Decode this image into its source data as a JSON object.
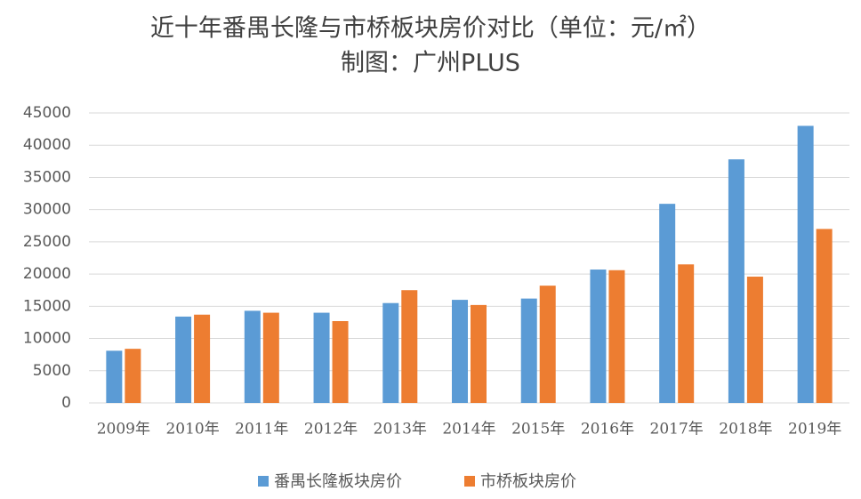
{
  "chart_data": {
    "type": "bar",
    "title": "近十年番禺长隆与市桥板块房价对比（单位：元/㎡）",
    "subtitle": "制图：广州PLUS",
    "categories": [
      "2009年",
      "2010年",
      "2011年",
      "2012年",
      "2013年",
      "2014年",
      "2015年",
      "2016年",
      "2017年",
      "2018年",
      "2019年"
    ],
    "series": [
      {
        "name": "番禺长隆板块房价",
        "color": "#5b9bd5",
        "values": [
          8100,
          13400,
          14300,
          14000,
          15500,
          16000,
          16200,
          20700,
          30900,
          37800,
          43000
        ]
      },
      {
        "name": "市桥板块房价",
        "color": "#ed7d31",
        "values": [
          8400,
          13700,
          14000,
          12700,
          17500,
          15200,
          18200,
          20600,
          21500,
          19600,
          27000
        ]
      }
    ],
    "ylim": [
      0,
      45000
    ],
    "yticks": [
      0,
      5000,
      10000,
      15000,
      20000,
      25000,
      30000,
      35000,
      40000,
      45000
    ],
    "grid": true,
    "legend": "bottom"
  }
}
